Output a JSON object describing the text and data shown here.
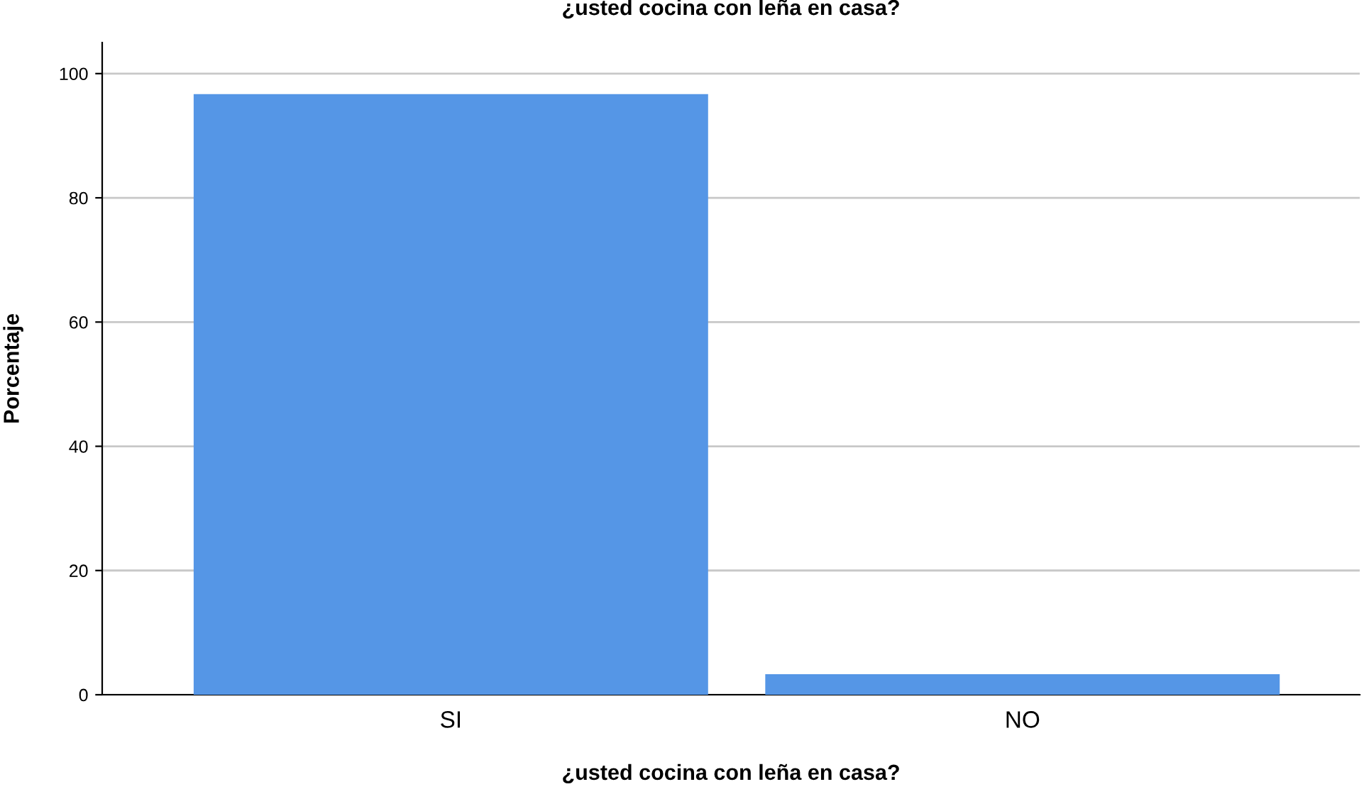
{
  "chart_data": {
    "type": "bar",
    "title": "¿usted cocina con leña en casa?",
    "xlabel": "¿usted cocina con leña en casa?",
    "ylabel": "Porcentaje",
    "categories": [
      "SI",
      "NO"
    ],
    "values": [
      96.7,
      3.3
    ],
    "color": "#5596e6",
    "ylim": [
      0,
      105
    ],
    "yticks": [
      0,
      20,
      40,
      60,
      80,
      100
    ],
    "grid": "y"
  }
}
